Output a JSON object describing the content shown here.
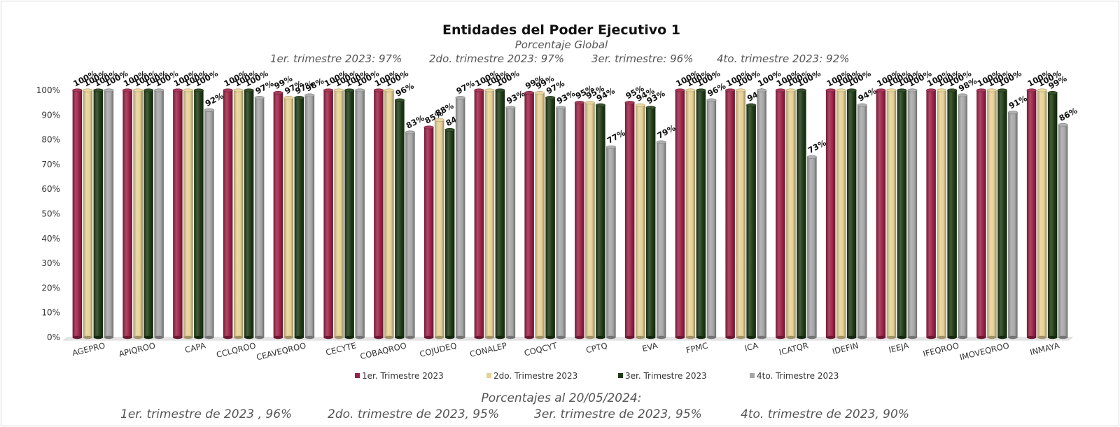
{
  "header": {
    "title": "Entidades del Poder Ejecutivo 1",
    "subtitle": "Porcentaje Global",
    "quarters": [
      "1er. trimestre 2023: 97%",
      "2do. trimestre 2023: 97%",
      "3er. trimestre: 96%",
      "4to. trimestre 2023: 92%"
    ]
  },
  "footer": {
    "title": "Porcentajes al 20/05/2024:",
    "items": [
      "1er. trimestre de 2023 , 96%",
      "2do. trimestre de 2023, 95%",
      "3er. trimestre de 2023, 95%",
      "4to. trimestre de 2023, 90%"
    ]
  },
  "chart_data": {
    "type": "bar",
    "title": "Entidades del Poder Ejecutivo 1",
    "xlabel": "",
    "ylabel": "",
    "ylim": [
      0,
      100
    ],
    "y_tick_labels": [
      "0%",
      "10%",
      "20%",
      "30%",
      "40%",
      "50%",
      "60%",
      "70%",
      "80%",
      "90%",
      "100%"
    ],
    "grid": false,
    "legend_position": "bottom",
    "categories": [
      "AGEPRO",
      "APIQROO",
      "CAPA",
      "CCLQROO",
      "CEAVEQROO",
      "CECYTE",
      "COBAQROO",
      "COJUDEQ",
      "CONALEP",
      "COQCYT",
      "CPTQ",
      "EVA",
      "FPMC",
      "ICA",
      "ICATQR",
      "IDEFIN",
      "IEEJA",
      "IFEQROO",
      "IMOVEQROO",
      "INMAYA"
    ],
    "series": [
      {
        "name": "1er. Trimestre 2023",
        "color": "#9b2247",
        "values": [
          100,
          100,
          100,
          100,
          99,
          100,
          100,
          85,
          100,
          99,
          95,
          95,
          100,
          100,
          100,
          100,
          100,
          100,
          100,
          100
        ]
      },
      {
        "name": "2do. Trimestre 2023",
        "color": "#e6d194",
        "values": [
          100,
          100,
          100,
          100,
          97,
          100,
          100,
          88,
          100,
          99,
          95,
          94,
          100,
          100,
          100,
          100,
          100,
          100,
          100,
          100
        ]
      },
      {
        "name": "3er. Trimestre 2023",
        "color": "#1e3a14",
        "values": [
          100,
          100,
          100,
          100,
          97,
          100,
          96,
          84,
          100,
          97,
          94,
          93,
          100,
          94,
          100,
          100,
          100,
          100,
          100,
          99
        ]
      },
      {
        "name": "4to. Trimestre 2023",
        "color": "#a6a6a6",
        "values": [
          100,
          100,
          92,
          97,
          98,
          100,
          83,
          97,
          93,
          93,
          77,
          79,
          96,
          100,
          73,
          94,
          100,
          98,
          91,
          86
        ]
      }
    ]
  }
}
